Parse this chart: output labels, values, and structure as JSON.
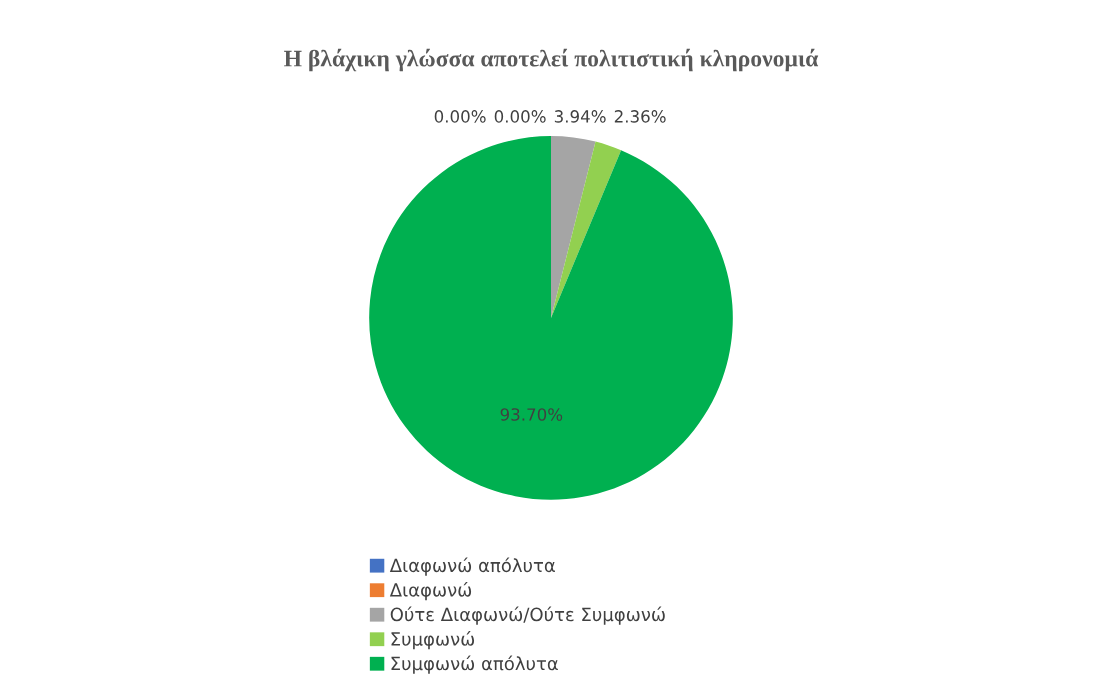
{
  "chart_data": {
    "type": "pie",
    "title": "Η βλάχικη γλώσσα αποτελεί πολιτιστική κληρονομιά",
    "categories": [
      "Διαφωνώ απόλυτα",
      "Διαφωνώ",
      "Ούτε Διαφωνώ/Ούτε Συμφωνώ",
      "Συμφωνώ",
      "Συμφωνώ απόλυτα"
    ],
    "values": [
      0.0,
      0.0,
      3.94,
      2.36,
      93.7
    ],
    "colors": [
      "#4472c4",
      "#ed7d31",
      "#a5a5a5",
      "#92d050",
      "#00b050"
    ],
    "value_labels": [
      "0.00%",
      "0.00%",
      "3.94%",
      "2.36%",
      "93.70%"
    ],
    "legend": "bottom"
  }
}
